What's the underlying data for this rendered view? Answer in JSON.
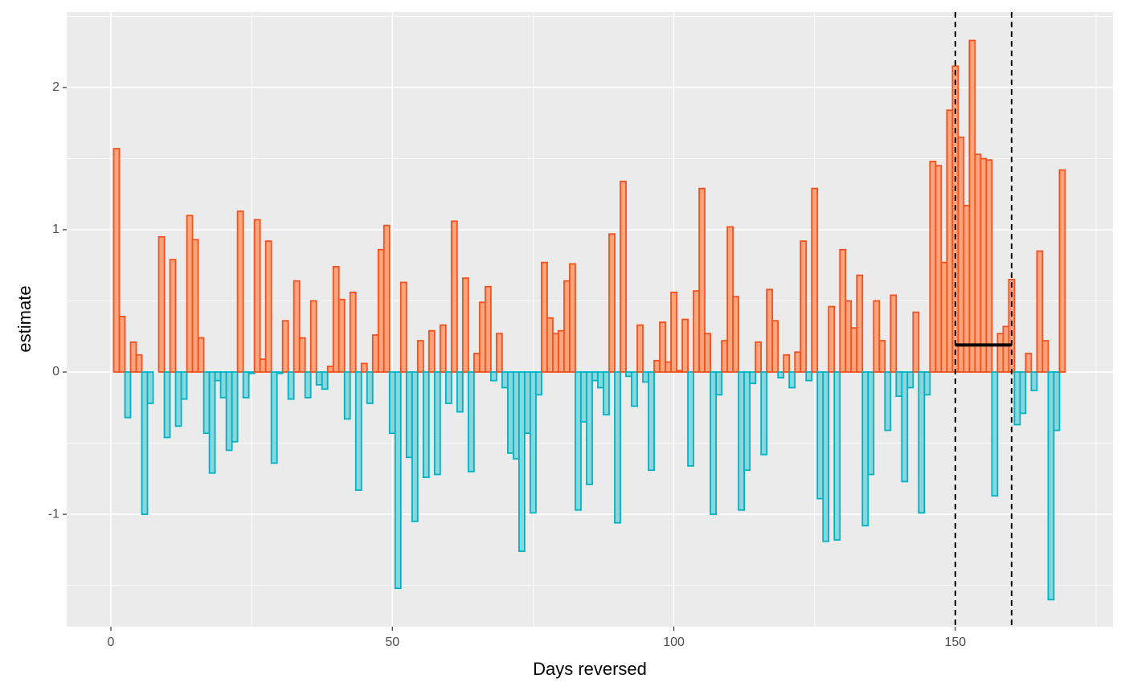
{
  "chart_data": {
    "type": "bar",
    "x_label": "Days reversed",
    "y_label": "estimate",
    "x": [
      1,
      2,
      3,
      4,
      5,
      6,
      7,
      8,
      9,
      10,
      11,
      12,
      13,
      14,
      15,
      16,
      17,
      18,
      19,
      20,
      21,
      22,
      23,
      24,
      25,
      26,
      27,
      28,
      29,
      30,
      31,
      32,
      33,
      34,
      35,
      36,
      37,
      38,
      39,
      40,
      41,
      42,
      43,
      44,
      45,
      46,
      47,
      48,
      49,
      50,
      51,
      52,
      53,
      54,
      55,
      56,
      57,
      58,
      59,
      60,
      61,
      62,
      63,
      64,
      65,
      66,
      67,
      68,
      69,
      70,
      71,
      72,
      73,
      74,
      75,
      76,
      77,
      78,
      79,
      80,
      81,
      82,
      83,
      84,
      85,
      86,
      87,
      88,
      89,
      90,
      91,
      92,
      93,
      94,
      95,
      96,
      97,
      98,
      99,
      100,
      101,
      102,
      103,
      104,
      105,
      106,
      107,
      108,
      109,
      110,
      111,
      112,
      113,
      114,
      115,
      116,
      117,
      118,
      119,
      120,
      121,
      122,
      123,
      124,
      125,
      126,
      127,
      128,
      129,
      130,
      131,
      132,
      133,
      134,
      135,
      136,
      137,
      138,
      139,
      140,
      141,
      142,
      143,
      144,
      145,
      146,
      147,
      148,
      149,
      150,
      151,
      152,
      153,
      154,
      155,
      156,
      157,
      158,
      159,
      160,
      161,
      162,
      163,
      164,
      165,
      166,
      167,
      168,
      169
    ],
    "values": [
      1.57,
      0.39,
      -0.32,
      0.21,
      0.12,
      -1.0,
      -0.22,
      0,
      0.95,
      -0.46,
      0.79,
      -0.38,
      -0.19,
      1.1,
      0.93,
      0.24,
      -0.43,
      -0.71,
      -0.06,
      -0.18,
      -0.55,
      -0.49,
      1.13,
      -0.18,
      -0.01,
      1.07,
      0.09,
      0.92,
      -0.64,
      -0.01,
      0.36,
      -0.19,
      0.64,
      0.24,
      -0.18,
      0.5,
      -0.09,
      -0.12,
      0.04,
      0.74,
      0.51,
      -0.33,
      0.56,
      -0.83,
      0.06,
      -0.22,
      0.26,
      0.86,
      1.03,
      -0.43,
      -1.52,
      0.63,
      -0.6,
      -1.05,
      0.22,
      -0.74,
      0.29,
      -0.72,
      0.33,
      -0.22,
      1.06,
      -0.28,
      0.66,
      -0.7,
      0.13,
      0.49,
      0.6,
      -0.06,
      0.27,
      -0.11,
      -0.57,
      -0.61,
      -1.26,
      -0.43,
      -0.99,
      -0.16,
      0.77,
      0.38,
      0.27,
      0.29,
      0.64,
      0.76,
      -0.97,
      -0.35,
      -0.79,
      -0.06,
      -0.11,
      -0.3,
      0.97,
      -1.06,
      1.34,
      -0.03,
      -0.24,
      0.33,
      -0.07,
      -0.69,
      0.08,
      0.35,
      0.07,
      0.56,
      0.01,
      0.37,
      -0.66,
      0.57,
      1.29,
      0.27,
      -1.0,
      -0.16,
      0.22,
      1.02,
      0.53,
      -0.97,
      -0.69,
      -0.08,
      0.21,
      -0.58,
      0.58,
      0.36,
      -0.04,
      0.12,
      -0.11,
      0.14,
      0.92,
      -0.06,
      1.29,
      -0.89,
      -1.19,
      0.46,
      -1.18,
      0.86,
      0.5,
      0.31,
      0.68,
      -1.08,
      -0.72,
      0.5,
      0.22,
      -0.41,
      0.54,
      -0.17,
      -0.77,
      -0.11,
      0.42,
      -0.99,
      -0.16,
      1.48,
      1.45,
      0.77,
      1.84,
      2.15,
      1.65,
      1.17,
      2.33,
      1.53,
      1.5,
      1.49,
      -0.87,
      0.27,
      0.32,
      0.65,
      -0.37,
      -0.29,
      0.13,
      -0.13,
      0.85,
      0.22,
      -1.6,
      -0.41,
      1.42
    ],
    "colors": {
      "positive_stroke": "#f4511e",
      "positive_fill": "#fca47c",
      "negative_stroke": "#00b3c4",
      "negative_fill": "#8ad6dd"
    },
    "xlim": [
      -7.85,
      178
    ],
    "ylim": [
      -1.79,
      2.53
    ],
    "xticks": [
      0,
      50,
      100,
      150
    ],
    "yticks": [
      -1,
      0,
      1,
      2
    ],
    "grid": true,
    "minor_grid": true,
    "vlines": [
      150,
      160
    ],
    "segment": {
      "x": [
        150,
        160
      ],
      "y": 0.19
    }
  }
}
